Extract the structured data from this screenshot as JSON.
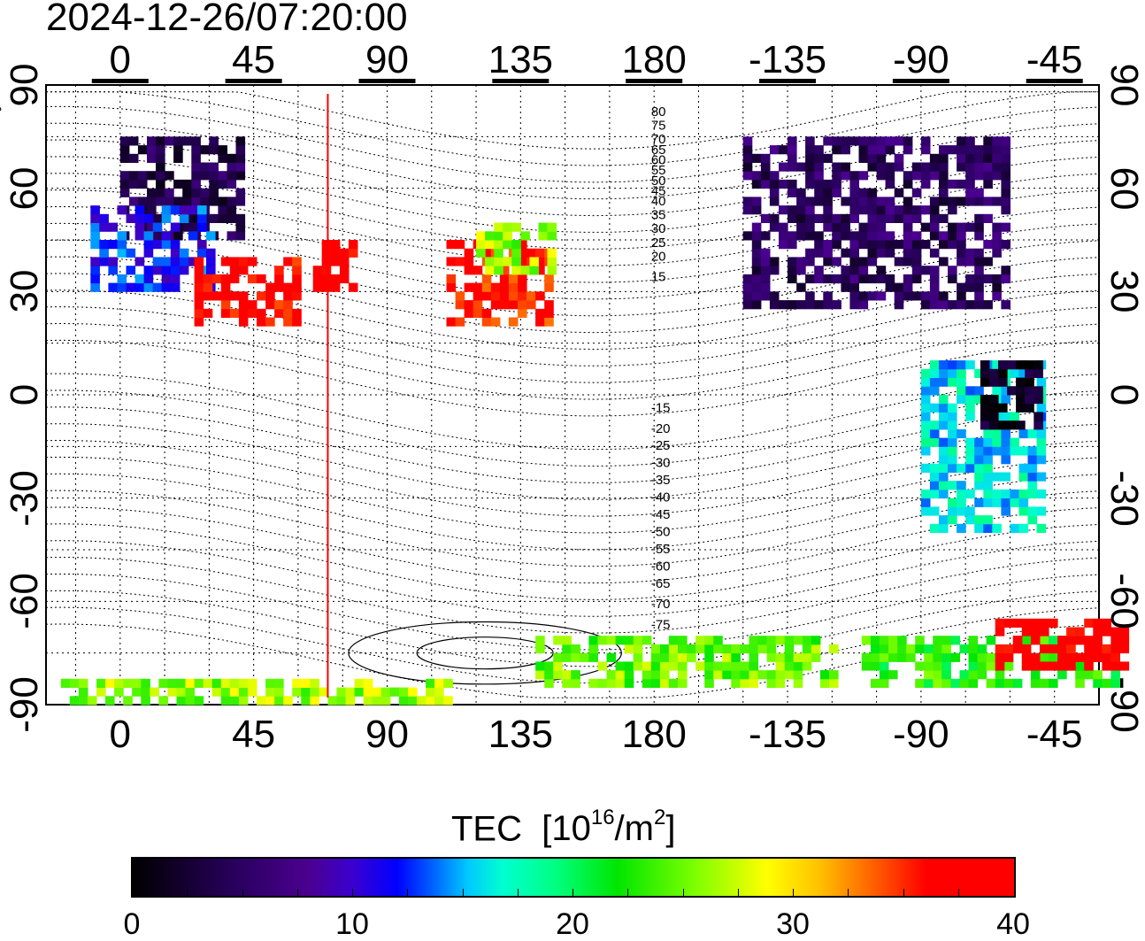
{
  "timestamp": "2024-12-26/07:20:00",
  "x_ticks": [
    "0",
    "45",
    "90",
    "135",
    "180",
    "-135",
    "-90",
    "-45"
  ],
  "y_ticks": [
    "90",
    "60",
    "30",
    "0",
    "-30",
    "-60",
    "-90"
  ],
  "contour_labels": [
    "80",
    "75",
    "70",
    "65",
    "60",
    "55",
    "50",
    "45",
    "40",
    "35",
    "30",
    "25",
    "20",
    "15",
    "-15",
    "-20",
    "-25",
    "-30",
    "-35",
    "-40",
    "-45",
    "-50",
    "-55",
    "-60",
    "-65",
    "-70",
    "-75"
  ],
  "colorbar": {
    "title": "TEC",
    "unit_open": "[10",
    "unit_exp": "16",
    "unit_mid": "/m",
    "unit_exp2": "2",
    "unit_close": "]",
    "ticks": [
      "0",
      "10",
      "20",
      "30",
      "40"
    ],
    "range": [
      0,
      40
    ]
  },
  "colors": {
    "high_tec": "#ff0000",
    "low_tec": "#3d007a",
    "terminator_line": "#ff0000"
  },
  "chart_data": {
    "type": "heatmap",
    "title": "2024-12-26/07:20:00",
    "quantity": "TEC",
    "xlim": [
      -25,
      330
    ],
    "ylim": [
      -90,
      90
    ],
    "grid": true,
    "terminator_longitude": 70,
    "regions": [
      {
        "lon": [
          0,
          40
        ],
        "lat": [
          45,
          75
        ],
        "tec": 4
      },
      {
        "lon": [
          -10,
          30
        ],
        "lat": [
          30,
          55
        ],
        "tec": 12
      },
      {
        "lon": [
          25,
          60
        ],
        "lat": [
          20,
          40
        ],
        "tec": 37
      },
      {
        "lon": [
          65,
          80
        ],
        "lat": [
          30,
          45
        ],
        "tec": 38
      },
      {
        "lon": [
          110,
          145
        ],
        "lat": [
          20,
          45
        ],
        "tec": 36
      },
      {
        "lon": [
          120,
          145
        ],
        "lat": [
          35,
          50
        ],
        "tec": 26
      },
      {
        "lon": [
          210,
          300
        ],
        "lat": [
          25,
          75
        ],
        "tec": 5
      },
      {
        "lon": [
          270,
          310
        ],
        "lat": [
          -40,
          10
        ],
        "tec": 16
      },
      {
        "lon": [
          290,
          310
        ],
        "lat": [
          -10,
          10
        ],
        "tec": 2
      },
      {
        "lon": [
          250,
          340
        ],
        "lat": [
          -85,
          -70
        ],
        "tec": 23
      },
      {
        "lon": [
          295,
          340
        ],
        "lat": [
          -80,
          -65
        ],
        "tec": 38
      },
      {
        "lon": [
          -20,
          110
        ],
        "lat": [
          -90,
          -83
        ],
        "tec": 26
      },
      {
        "lon": [
          140,
          240
        ],
        "lat": [
          -85,
          -70
        ],
        "tec": 25
      }
    ]
  }
}
